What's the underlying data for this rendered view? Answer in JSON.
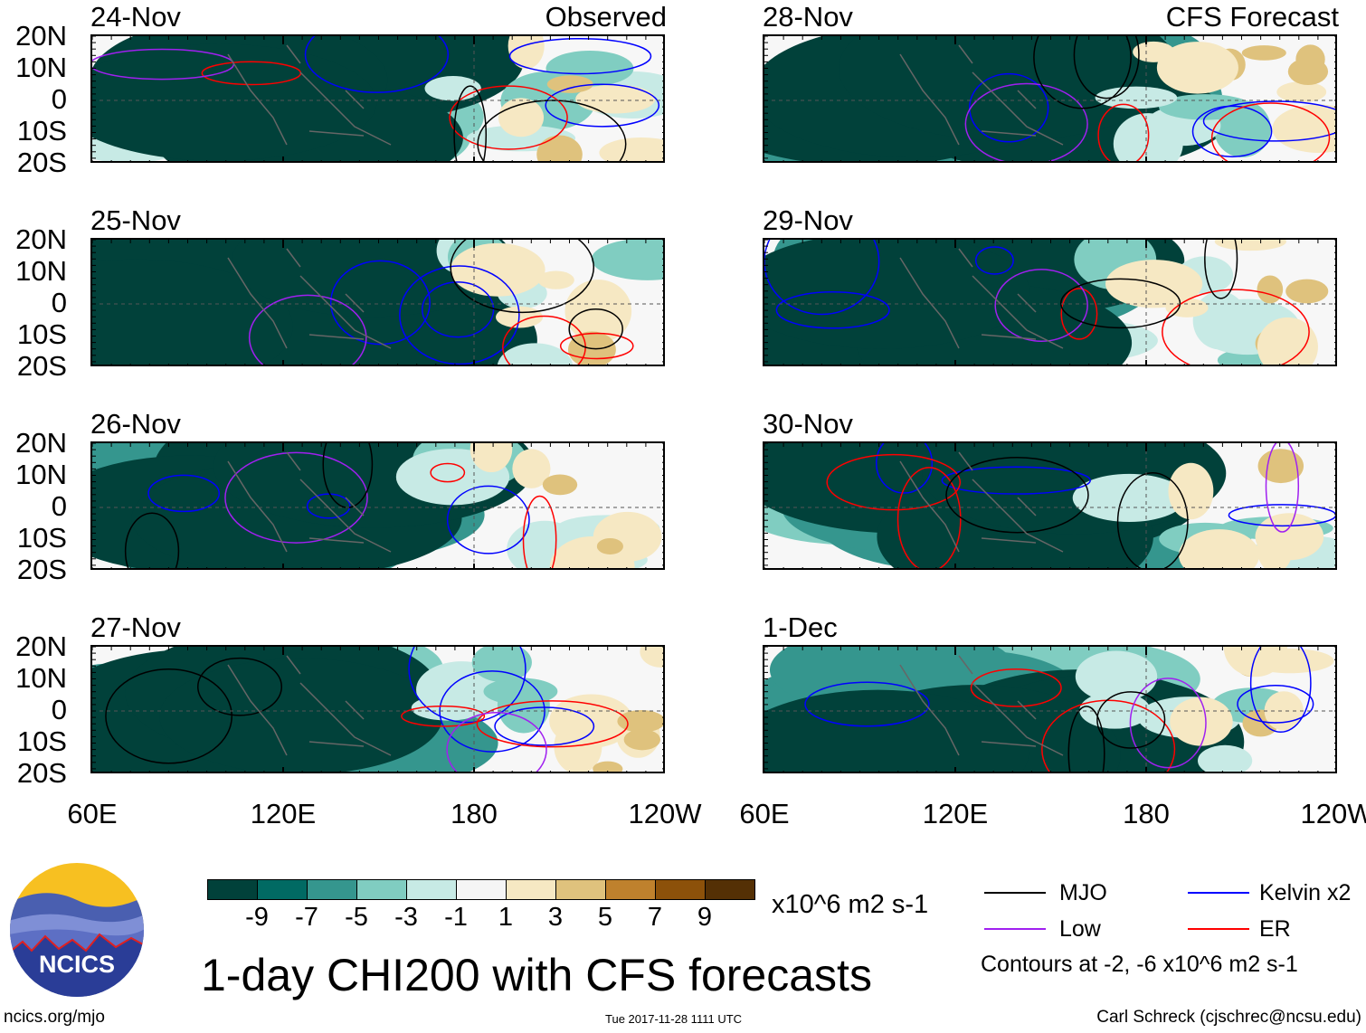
{
  "headers": {
    "left": "Observed",
    "right": "CFS Forecast"
  },
  "panels": {
    "left": [
      "24-Nov",
      "25-Nov",
      "26-Nov",
      "27-Nov"
    ],
    "right": [
      "28-Nov",
      "29-Nov",
      "30-Nov",
      "1-Dec"
    ]
  },
  "lat_labels": [
    "20N",
    "10N",
    "0",
    "10S",
    "20S"
  ],
  "lon_labels": [
    "60E",
    "120E",
    "180",
    "120W"
  ],
  "colorbar": {
    "colors": [
      "#01413a",
      "#016a63",
      "#35968e",
      "#80cdc1",
      "#c7eae5",
      "#f5f5f5",
      "#f6e8c3",
      "#dfc27d",
      "#bf812d",
      "#8c510a",
      "#543005"
    ],
    "labels": [
      "-9",
      "-7",
      "-5",
      "-3",
      "-1",
      "1",
      "3",
      "5",
      "7",
      "9"
    ],
    "units": "x10^6 m2 s-1"
  },
  "title": "1-day CHI200 with CFS forecasts",
  "timestamp": "Tue 2017-11-28 1111 UTC",
  "legend": {
    "items": [
      {
        "label": "MJO",
        "color": "#000000"
      },
      {
        "label": "Kelvin x2",
        "color": "#0000ff"
      },
      {
        "label": "Low",
        "color": "#a020f0"
      },
      {
        "label": "ER",
        "color": "#ff0000"
      }
    ],
    "note": "Contours at -2, -6 x10^6 m2 s-1"
  },
  "logo": {
    "text": "NCICS"
  },
  "footer": {
    "left": "ncics.org/mjo",
    "right": "Carl Schreck (cjschrec@ncsu.edu)"
  }
}
